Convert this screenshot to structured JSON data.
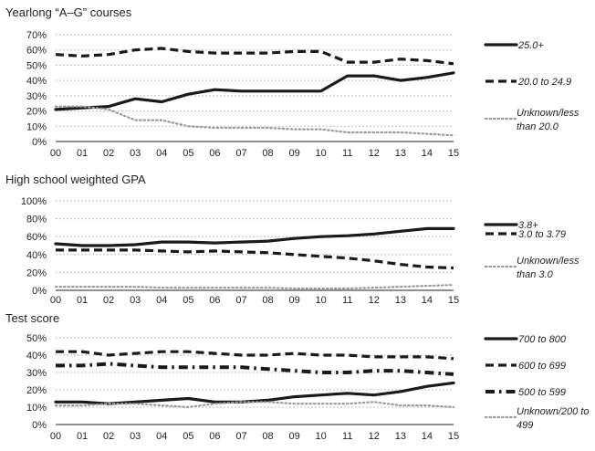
{
  "chart_data": [
    {
      "type": "line",
      "title": "Yearlong “A–G” courses",
      "categories": [
        "00",
        "01",
        "02",
        "03",
        "04",
        "05",
        "06",
        "07",
        "08",
        "09",
        "10",
        "11",
        "12",
        "13",
        "14",
        "15"
      ],
      "ylim": [
        0,
        70
      ],
      "yticks": [
        "0%",
        "10%",
        "20%",
        "30%",
        "40%",
        "50%",
        "60%",
        "70%"
      ],
      "grid": "horizontal dotted",
      "legend_position": "right",
      "series": [
        {
          "name": "25.0+",
          "style": "solid",
          "values": [
            21,
            22,
            23,
            28,
            26,
            31,
            34,
            33,
            33,
            33,
            33,
            43,
            43,
            40,
            42,
            45
          ]
        },
        {
          "name": "20.0 to 24.9",
          "style": "dash",
          "values": [
            57,
            56,
            57,
            60,
            61,
            59,
            58,
            58,
            58,
            59,
            59,
            52,
            52,
            54,
            53,
            51
          ]
        },
        {
          "name": "Unknown/less than 20.0",
          "style": "dot",
          "values": [
            23,
            23,
            21,
            14,
            14,
            10,
            9,
            9,
            9,
            8,
            8,
            6,
            6,
            6,
            5,
            4
          ]
        }
      ]
    },
    {
      "type": "line",
      "title": "High school weighted GPA",
      "categories": [
        "00",
        "01",
        "02",
        "03",
        "04",
        "05",
        "06",
        "07",
        "08",
        "09",
        "10",
        "11",
        "12",
        "13",
        "14",
        "15"
      ],
      "ylim": [
        0,
        100
      ],
      "yticks": [
        "0%",
        "20%",
        "40%",
        "60%",
        "80%",
        "100%"
      ],
      "grid": "horizontal dotted",
      "legend_position": "right",
      "series": [
        {
          "name": "3.8+",
          "style": "solid",
          "values": [
            52,
            50,
            50,
            51,
            54,
            54,
            53,
            54,
            55,
            58,
            60,
            61,
            63,
            66,
            69,
            69
          ]
        },
        {
          "name": "3.0 to 3.79",
          "style": "dash",
          "values": [
            45,
            45,
            45,
            45,
            44,
            43,
            44,
            43,
            42,
            40,
            38,
            36,
            33,
            29,
            26,
            25
          ]
        },
        {
          "name": "Unknown/less than 3.0",
          "style": "dot",
          "values": [
            4,
            4,
            4,
            4,
            3,
            3,
            3,
            3,
            3,
            2,
            2,
            2,
            3,
            4,
            5,
            6
          ]
        }
      ]
    },
    {
      "type": "line",
      "title": "Test score",
      "categories": [
        "00",
        "01",
        "02",
        "03",
        "04",
        "05",
        "06",
        "07",
        "08",
        "09",
        "10",
        "11",
        "12",
        "13",
        "14",
        "15"
      ],
      "ylim": [
        0,
        50
      ],
      "yticks": [
        "0%",
        "10%",
        "20%",
        "30%",
        "40%",
        "50%"
      ],
      "grid": "horizontal dotted",
      "legend_position": "right",
      "series": [
        {
          "name": "700 to 800",
          "style": "solid",
          "values": [
            13,
            13,
            12,
            13,
            14,
            15,
            13,
            13,
            14,
            16,
            17,
            18,
            17,
            19,
            22,
            24
          ]
        },
        {
          "name": "600 to 699",
          "style": "dash",
          "values": [
            42,
            42,
            40,
            41,
            42,
            42,
            41,
            40,
            40,
            41,
            40,
            40,
            39,
            39,
            39,
            38
          ]
        },
        {
          "name": "500 to 599",
          "style": "dashdot",
          "values": [
            34,
            34,
            35,
            34,
            33,
            33,
            33,
            33,
            32,
            31,
            30,
            30,
            31,
            31,
            30,
            29
          ]
        },
        {
          "name": "Unknown/200 to 499",
          "style": "dot",
          "values": [
            11,
            11,
            12,
            12,
            11,
            10,
            12,
            13,
            13,
            12,
            12,
            12,
            13,
            11,
            11,
            10
          ]
        }
      ]
    }
  ]
}
